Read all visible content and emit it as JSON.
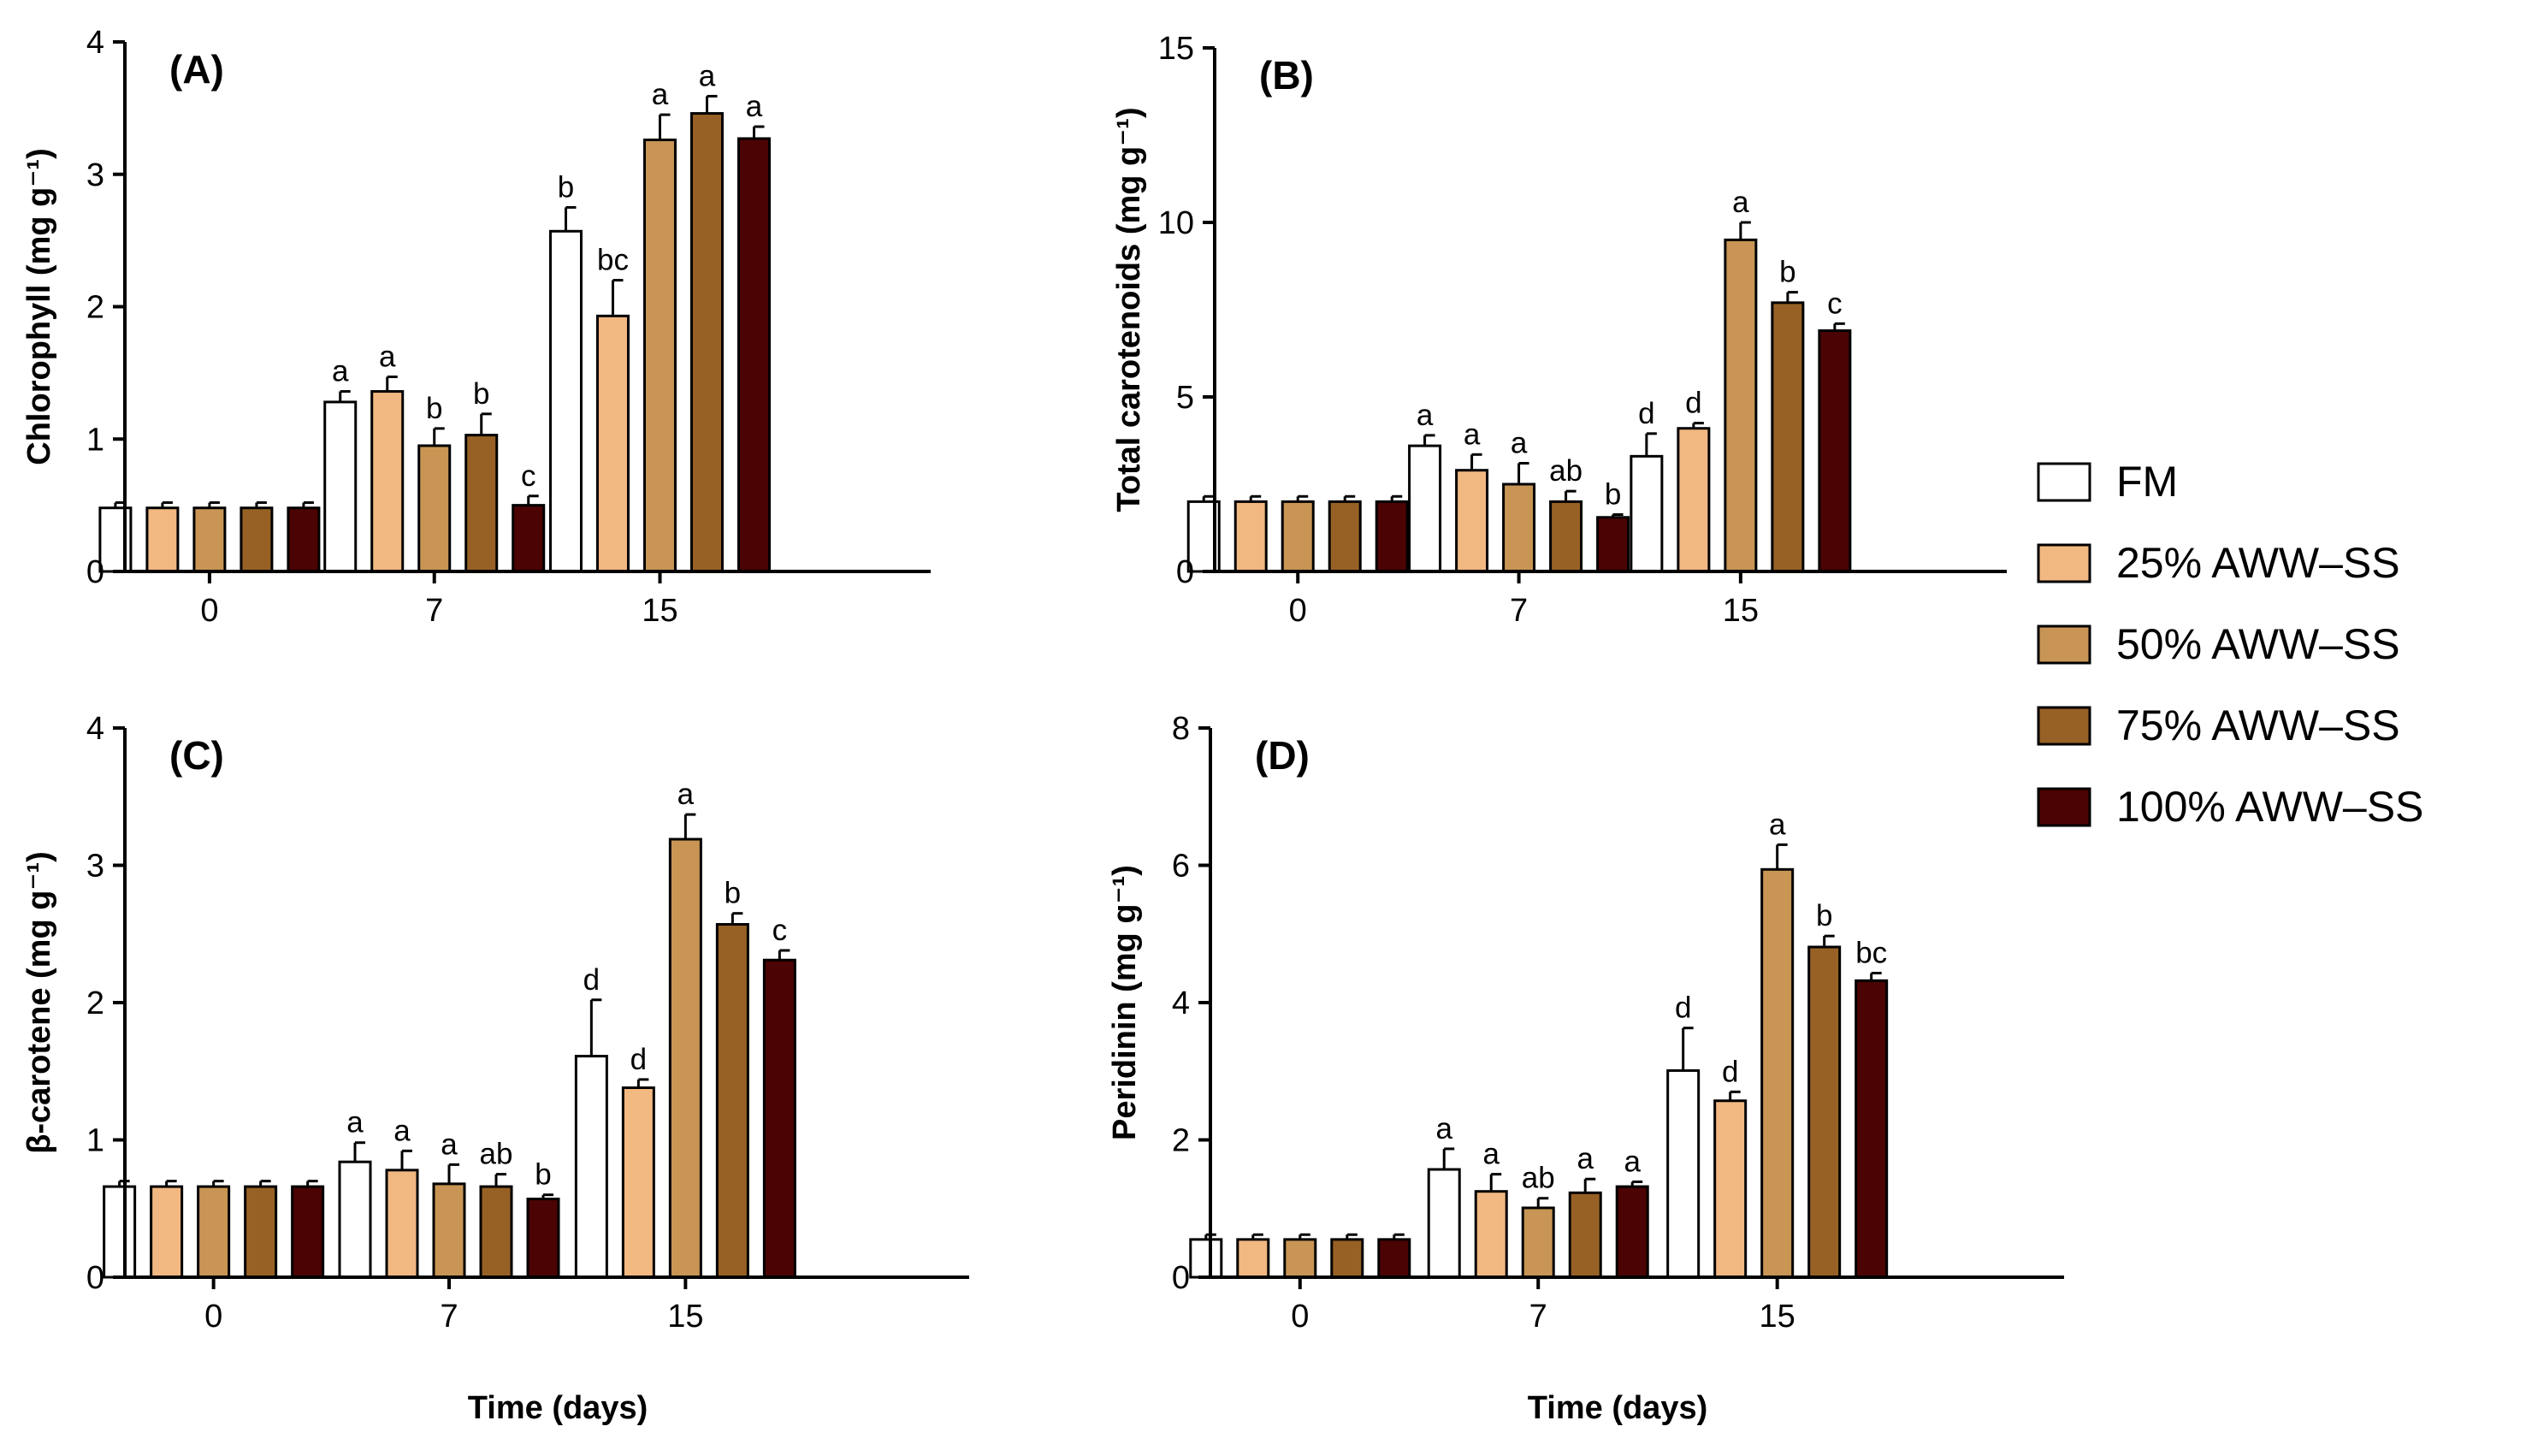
{
  "legend": [
    {
      "name": "FM",
      "color": "#ffffff"
    },
    {
      "name": "25% AWW–SS",
      "color": "#f2b882"
    },
    {
      "name": "50% AWW–SS",
      "color": "#c89555"
    },
    {
      "name": "75% AWW–SS",
      "color": "#976125"
    },
    {
      "name": "100% AWW–SS",
      "color": "#4b0303"
    }
  ],
  "chart_data": [
    {
      "type": "bar",
      "panel": "(A)",
      "title": "",
      "xlabel": "",
      "ylabel": "Chlorophyll (mg g⁻¹)",
      "categories": [
        "0",
        "7",
        "15"
      ],
      "ylim": [
        0,
        4
      ],
      "yticks": [
        "0",
        "1",
        "2",
        "3",
        "4"
      ],
      "ytick_values": [
        0,
        1,
        2,
        3,
        4
      ],
      "series": [
        {
          "name": "FM",
          "values": [
            0.48,
            1.28,
            2.57
          ],
          "errors": [
            0.04,
            0.08,
            0.18
          ],
          "labels": [
            "",
            "a",
            "b"
          ]
        },
        {
          "name": "25% AWW–SS",
          "values": [
            0.48,
            1.36,
            1.93
          ],
          "errors": [
            0.04,
            0.11,
            0.27
          ],
          "labels": [
            "",
            "a",
            "bc"
          ]
        },
        {
          "name": "50% AWW–SS",
          "values": [
            0.48,
            0.95,
            3.26
          ],
          "errors": [
            0.04,
            0.13,
            0.19
          ],
          "labels": [
            "",
            "b",
            "a"
          ]
        },
        {
          "name": "75% AWW–SS",
          "values": [
            0.48,
            1.03,
            3.46
          ],
          "errors": [
            0.04,
            0.16,
            0.13
          ],
          "labels": [
            "",
            "b",
            "a"
          ]
        },
        {
          "name": "100% AWW–SS",
          "values": [
            0.48,
            0.5,
            3.27
          ],
          "errors": [
            0.04,
            0.07,
            0.09
          ],
          "labels": [
            "",
            "c",
            "a"
          ]
        }
      ]
    },
    {
      "type": "bar",
      "panel": "(B)",
      "title": "",
      "xlabel": "",
      "ylabel": "Total carotenoids (mg g⁻¹)",
      "categories": [
        "0",
        "7",
        "15"
      ],
      "ylim": [
        0,
        15
      ],
      "yticks": [
        "0",
        "5",
        "10",
        "15"
      ],
      "ytick_values": [
        0,
        5,
        10,
        15
      ],
      "series": [
        {
          "name": "FM",
          "values": [
            2.0,
            3.6,
            3.3
          ],
          "errors": [
            0.15,
            0.3,
            0.65
          ],
          "labels": [
            "",
            "a",
            "d"
          ]
        },
        {
          "name": "25% AWW–SS",
          "values": [
            2.0,
            2.9,
            4.1
          ],
          "errors": [
            0.15,
            0.45,
            0.15
          ],
          "labels": [
            "",
            "a",
            "d"
          ]
        },
        {
          "name": "50% AWW–SS",
          "values": [
            2.0,
            2.5,
            9.5
          ],
          "errors": [
            0.15,
            0.6,
            0.5
          ],
          "labels": [
            "",
            "a",
            "a"
          ]
        },
        {
          "name": "75% AWW–SS",
          "values": [
            2.0,
            2.0,
            7.7
          ],
          "errors": [
            0.15,
            0.3,
            0.3
          ],
          "labels": [
            "",
            "ab",
            "b"
          ]
        },
        {
          "name": "100% AWW–SS",
          "values": [
            2.0,
            1.55,
            6.9
          ],
          "errors": [
            0.15,
            0.08,
            0.2
          ],
          "labels": [
            "",
            "b",
            "c"
          ]
        }
      ]
    },
    {
      "type": "bar",
      "panel": "(C)",
      "title": "",
      "xlabel": "Time  (days)",
      "ylabel": "β-carotene (mg g⁻¹)",
      "categories": [
        "0",
        "7",
        "15"
      ],
      "ylim": [
        0,
        4
      ],
      "yticks": [
        "0",
        "1",
        "2",
        "3",
        "4"
      ],
      "ytick_values": [
        0,
        1,
        2,
        3,
        4
      ],
      "series": [
        {
          "name": "FM",
          "values": [
            0.66,
            0.84,
            1.61
          ],
          "errors": [
            0.04,
            0.14,
            0.41
          ],
          "labels": [
            "",
            "a",
            "d"
          ]
        },
        {
          "name": "25% AWW–SS",
          "values": [
            0.66,
            0.78,
            1.38
          ],
          "errors": [
            0.04,
            0.14,
            0.06
          ],
          "labels": [
            "",
            "a",
            "d"
          ]
        },
        {
          "name": "50% AWW–SS",
          "values": [
            0.66,
            0.68,
            3.19
          ],
          "errors": [
            0.04,
            0.14,
            0.18
          ],
          "labels": [
            "",
            "a",
            "a"
          ]
        },
        {
          "name": "75% AWW–SS",
          "values": [
            0.66,
            0.66,
            2.57
          ],
          "errors": [
            0.04,
            0.09,
            0.08
          ],
          "labels": [
            "",
            "ab",
            "b"
          ]
        },
        {
          "name": "100% AWW–SS",
          "values": [
            0.66,
            0.57,
            2.31
          ],
          "errors": [
            0.04,
            0.03,
            0.07
          ],
          "labels": [
            "",
            "b",
            "c"
          ]
        }
      ]
    },
    {
      "type": "bar",
      "panel": "(D)",
      "title": "",
      "xlabel": "Time  (days)",
      "ylabel": "Peridinin (mg g⁻¹)",
      "categories": [
        "0",
        "7",
        "15"
      ],
      "ylim": [
        0,
        8
      ],
      "yticks": [
        "0",
        "2",
        "4",
        "6",
        "8"
      ],
      "ytick_values": [
        0,
        2,
        4,
        6,
        8
      ],
      "series": [
        {
          "name": "FM",
          "values": [
            0.55,
            1.57,
            3.01
          ],
          "errors": [
            0.07,
            0.3,
            0.62
          ],
          "labels": [
            "",
            "a",
            "d"
          ]
        },
        {
          "name": "25% AWW–SS",
          "values": [
            0.55,
            1.25,
            2.57
          ],
          "errors": [
            0.07,
            0.25,
            0.13
          ],
          "labels": [
            "",
            "a",
            "d"
          ]
        },
        {
          "name": "50% AWW–SS",
          "values": [
            0.55,
            1.01,
            5.94
          ],
          "errors": [
            0.07,
            0.14,
            0.36
          ],
          "labels": [
            "",
            "ab",
            "a"
          ]
        },
        {
          "name": "75% AWW–SS",
          "values": [
            0.55,
            1.23,
            4.81
          ],
          "errors": [
            0.07,
            0.2,
            0.16
          ],
          "labels": [
            "",
            "a",
            "b"
          ]
        },
        {
          "name": "100% AWW–SS",
          "values": [
            0.55,
            1.32,
            4.32
          ],
          "errors": [
            0.07,
            0.07,
            0.11
          ],
          "labels": [
            "",
            "a",
            "bc"
          ]
        }
      ]
    }
  ]
}
